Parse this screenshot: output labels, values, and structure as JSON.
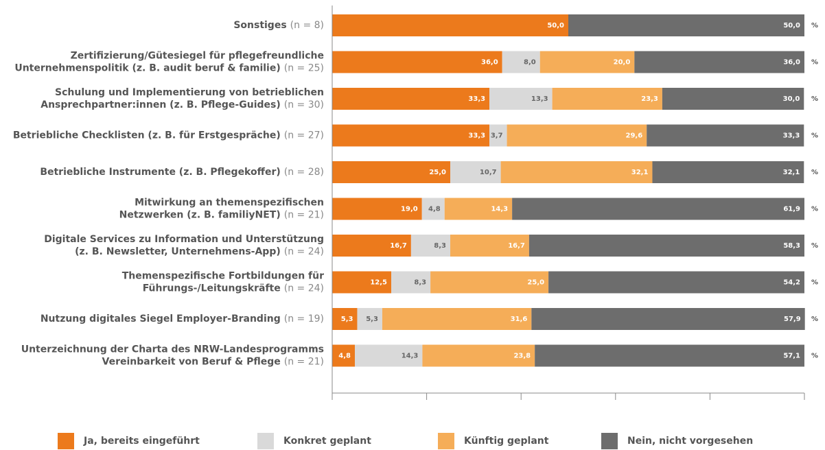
{
  "chart_data": {
    "type": "stacked-bar-horizontal",
    "categories": [
      {
        "lines": [
          "Sonstiges"
        ],
        "n": "(n = 8)"
      },
      {
        "lines": [
          "Zertifizierung/Gütesiegel für pflegefreundliche",
          "Unternehmenspolitik (z. B. audit beruf & familie)"
        ],
        "n": "(n = 25)"
      },
      {
        "lines": [
          "Schulung und Implementierung von betrieblichen",
          "Ansprechpartner:innen (z. B. Pflege-Guides)"
        ],
        "n": "(n = 30)"
      },
      {
        "lines": [
          "Betriebliche Checklisten (z. B. für Erstgespräche)"
        ],
        "n": "(n = 27)"
      },
      {
        "lines": [
          "Betriebliche Instrumente (z. B. Pflegekoffer)"
        ],
        "n": "(n = 28)"
      },
      {
        "lines": [
          "Mitwirkung an themenspezifischen",
          "Netzwerken (z. B. familiyNET)"
        ],
        "n": "(n = 21)"
      },
      {
        "lines": [
          "Digitale Services zu Information und Unterstützung",
          "(z. B. Newsletter, Unternehmens-App)"
        ],
        "n": "(n = 24)"
      },
      {
        "lines": [
          "Themenspezifische Fortbildungen für",
          "Führungs-/Leitungskräfte"
        ],
        "n": "(n = 24)"
      },
      {
        "lines": [
          "Nutzung digitales Siegel Employer-Branding"
        ],
        "n": "(n = 19)"
      },
      {
        "lines": [
          "Unterzeichnung der Charta des NRW-Landesprogramms",
          "Vereinbarkeit von Beruf & Pflege"
        ],
        "n": "(n = 21)"
      }
    ],
    "series": [
      {
        "name": "Ja, bereits eingeführt",
        "color": "#ec7a1c",
        "label_color": "#ffffff",
        "values": [
          50.0,
          36.0,
          33.3,
          33.3,
          25.0,
          19.0,
          16.7,
          12.5,
          5.3,
          4.8
        ],
        "value_labels": [
          "50,0",
          "36,0",
          "33,3",
          "33,3",
          "25,0",
          "19,0",
          "16,7",
          "12,5",
          "5,3",
          "4,8"
        ]
      },
      {
        "name": "Konkret geplant",
        "color": "#d9d9d9",
        "label_color": "#666666",
        "values": [
          null,
          8.0,
          13.3,
          3.7,
          10.7,
          4.8,
          8.3,
          8.3,
          5.3,
          14.3
        ],
        "value_labels": [
          null,
          "8,0",
          "13,3",
          "3,7",
          "10,7",
          "4,8",
          "8,3",
          "8,3",
          "5,3",
          "14,3"
        ]
      },
      {
        "name": "Künftig geplant",
        "color": "#f5ad58",
        "label_color": "#ffffff",
        "values": [
          null,
          20.0,
          23.3,
          29.6,
          32.1,
          14.3,
          16.7,
          25.0,
          31.6,
          23.8
        ],
        "value_labels": [
          null,
          "20,0",
          "23,3",
          "29,6",
          "32,1",
          "14,3",
          "16,7",
          "25,0",
          "31,6",
          "23,8"
        ]
      },
      {
        "name": "Nein, nicht vorgesehen",
        "color": "#6d6d6d",
        "label_color": "#ffffff",
        "values": [
          50.0,
          36.0,
          30.0,
          33.3,
          32.1,
          61.9,
          58.3,
          54.2,
          57.9,
          57.1
        ],
        "value_labels": [
          "50,0",
          "36,0",
          "30,0",
          "33,3",
          "32,1",
          "61,9",
          "58,3",
          "54,2",
          "57,9",
          "57,1"
        ]
      }
    ],
    "unit": "%",
    "xlim": [
      0,
      100
    ],
    "xticks": [
      0,
      20,
      40,
      60,
      80,
      100
    ]
  }
}
